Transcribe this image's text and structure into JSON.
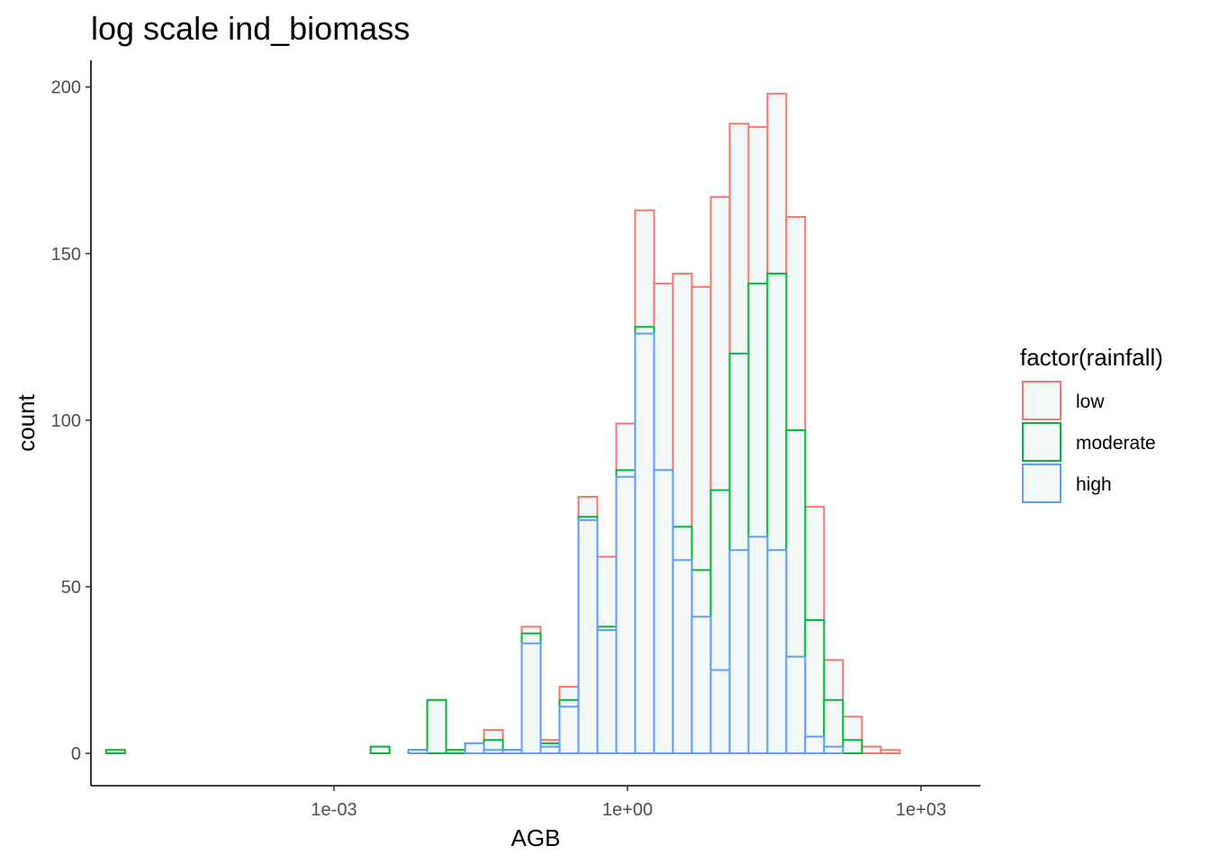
{
  "chart_data": {
    "type": "bar",
    "subtype": "stacked histogram",
    "title": "log scale ind_biomass",
    "xlabel": "AGB",
    "ylabel": "count",
    "x_scale": "log10",
    "x_tick_values": [
      0.001,
      1,
      1000
    ],
    "x_tick_labels": [
      "1e-03",
      "1e+00",
      "1e+03"
    ],
    "y_tick_values": [
      0,
      50,
      100,
      150,
      200
    ],
    "y_tick_labels": [
      "0",
      "50",
      "100",
      "150",
      "200"
    ],
    "ylim": [
      -9,
      208
    ],
    "grid": false,
    "legend": {
      "title": "factor(rainfall)",
      "position": "right"
    },
    "bar_fill": "#f2f7f7",
    "bin_width_log10": 0.1931,
    "bin_left_log10": [
      -5.33,
      -5.137,
      -4.944,
      -4.751,
      -4.557,
      -4.364,
      -4.171,
      -3.978,
      -3.785,
      -3.592,
      -3.399,
      -3.205,
      -3.012,
      -2.819,
      -2.626,
      -2.433,
      -2.24,
      -2.047,
      -1.853,
      -1.66,
      -1.467,
      -1.274,
      -1.081,
      -0.888,
      -0.695,
      -0.501,
      -0.308,
      -0.115,
      0.078,
      0.271,
      0.464,
      0.657,
      0.851,
      1.044,
      1.237,
      1.43,
      1.623,
      1.816,
      2.009,
      2.203,
      2.396,
      2.589,
      2.782,
      2.975
    ],
    "series": [
      {
        "name": "low",
        "color": "#f8766d",
        "cumulative_counts": [
          1,
          0,
          0,
          0,
          0,
          0,
          0,
          0,
          0,
          0,
          0,
          0,
          0,
          0,
          2,
          0,
          1,
          16,
          1,
          3,
          7,
          1,
          38,
          4,
          20,
          77,
          59,
          99,
          163,
          141,
          144,
          140,
          167,
          189,
          188,
          198,
          161,
          74,
          28,
          11,
          2,
          1,
          0,
          0
        ]
      },
      {
        "name": "moderate",
        "color": "#00ba38",
        "cumulative_counts": [
          1,
          0,
          0,
          0,
          0,
          0,
          0,
          0,
          0,
          0,
          0,
          0,
          0,
          0,
          2,
          0,
          1,
          16,
          1,
          3,
          4,
          1,
          36,
          3,
          16,
          71,
          38,
          85,
          128,
          85,
          68,
          55,
          79,
          120,
          141,
          144,
          97,
          40,
          16,
          4,
          0,
          0,
          0,
          0
        ]
      },
      {
        "name": "high",
        "color": "#619cff",
        "cumulative_counts": [
          0,
          0,
          0,
          0,
          0,
          0,
          0,
          0,
          0,
          0,
          0,
          0,
          0,
          0,
          0,
          0,
          1,
          0,
          0,
          3,
          1,
          1,
          33,
          2,
          14,
          70,
          37,
          83,
          126,
          85,
          58,
          41,
          25,
          61,
          65,
          61,
          29,
          5,
          2,
          0,
          0,
          0,
          0,
          0
        ]
      }
    ]
  }
}
